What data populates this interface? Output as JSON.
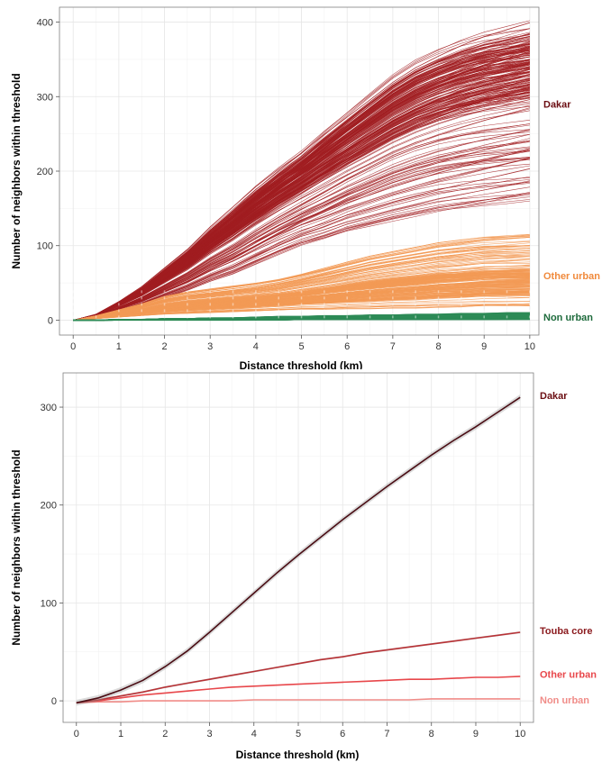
{
  "chart_data": [
    {
      "type": "line",
      "panel": "top",
      "xlabel": "Distance threshold (km)",
      "ylabel": "Number of neighbors within threshold",
      "xlim": [
        -0.3,
        10.2
      ],
      "ylim": [
        -20,
        420
      ],
      "x_ticks": [
        0,
        1,
        2,
        3,
        4,
        5,
        6,
        7,
        8,
        9,
        10
      ],
      "y_ticks": [
        0,
        100,
        200,
        300,
        400
      ],
      "grid": true,
      "legend_placement": "right-inline",
      "x": [
        0,
        0.5,
        1,
        1.5,
        2,
        2.5,
        3,
        3.5,
        4,
        4.5,
        5,
        5.5,
        6,
        6.5,
        7,
        7.5,
        8,
        8.5,
        9,
        9.5,
        10
      ],
      "series": [
        {
          "name": "Dakar",
          "color": "#a11d21",
          "label_color": "#6b0d12",
          "label_at_y": 290,
          "envelope_lower": [
            0,
            4,
            12,
            20,
            30,
            40,
            52,
            62,
            75,
            88,
            100,
            108,
            118,
            125,
            132,
            138,
            144,
            148,
            152,
            156,
            160
          ],
          "envelope_upper": [
            0,
            8,
            25,
            45,
            70,
            95,
            125,
            152,
            180,
            205,
            228,
            255,
            280,
            305,
            330,
            350,
            365,
            378,
            388,
            395,
            402
          ],
          "density_peak_y": 340
        },
        {
          "name": "Other urban",
          "color": "#f39a55",
          "label_color": "#f08a3c",
          "label_at_y": 60,
          "envelope_lower": [
            0,
            2,
            4,
            6,
            8,
            9,
            10,
            11,
            12,
            13,
            14,
            14,
            15,
            15,
            16,
            16,
            17,
            17,
            18,
            18,
            18
          ],
          "envelope_upper": [
            0,
            6,
            14,
            22,
            32,
            38,
            42,
            46,
            50,
            55,
            62,
            70,
            78,
            86,
            92,
            98,
            104,
            108,
            112,
            114,
            116
          ],
          "density_peak_y": 50
        },
        {
          "name": "Non urban",
          "color": "#2e8b57",
          "label_color": "#1e6b3c",
          "label_at_y": 4,
          "envelope_lower": [
            0,
            0,
            0,
            0,
            0,
            0,
            0,
            0,
            0,
            0,
            1,
            1,
            1,
            1,
            1,
            1,
            1,
            1,
            1,
            1,
            1
          ],
          "envelope_upper": [
            0,
            0,
            1,
            1,
            2,
            2,
            3,
            3,
            4,
            5,
            5,
            6,
            6,
            7,
            7,
            8,
            8,
            9,
            9,
            10,
            10
          ],
          "density_peak_y": 5
        }
      ]
    },
    {
      "type": "line",
      "panel": "bottom",
      "xlabel": "Distance threshold (km)",
      "ylabel": "Number of neighbors within threshold",
      "xlim": [
        -0.3,
        10.3
      ],
      "ylim": [
        -22,
        335
      ],
      "x_ticks": [
        0,
        1,
        2,
        3,
        4,
        5,
        6,
        7,
        8,
        9,
        10
      ],
      "y_ticks": [
        0,
        100,
        200,
        300
      ],
      "grid": true,
      "legend_placement": "right-inline",
      "x": [
        0,
        0.5,
        1,
        1.5,
        2,
        2.5,
        3,
        3.5,
        4,
        4.5,
        5,
        5.5,
        6,
        6.5,
        7,
        7.5,
        8,
        8.5,
        9,
        9.5,
        10
      ],
      "series": [
        {
          "name": "Dakar",
          "color": "#4a0d14",
          "label_color": "#6b0d12",
          "label_at_y": 312,
          "values": [
            -2,
            3,
            11,
            21,
            35,
            51,
            70,
            90,
            110,
            130,
            149,
            167,
            185,
            202,
            219,
            235,
            251,
            266,
            280,
            295,
            310
          ],
          "ci_halfwidth": 3
        },
        {
          "name": "Touba core",
          "color": "#b83236",
          "label_color": "#8b1a1e",
          "label_at_y": 72,
          "values": [
            -2,
            1,
            5,
            9,
            14,
            18,
            22,
            26,
            30,
            34,
            38,
            42,
            45,
            49,
            52,
            55,
            58,
            61,
            64,
            67,
            70
          ],
          "ci_halfwidth": 1
        },
        {
          "name": "Other urban",
          "color": "#e8474b",
          "label_color": "#e8474b",
          "label_at_y": 27,
          "values": [
            -2,
            0,
            3,
            6,
            8,
            10,
            12,
            14,
            15,
            16,
            17,
            18,
            19,
            20,
            21,
            22,
            22,
            23,
            24,
            24,
            25
          ],
          "ci_halfwidth": 0.5
        },
        {
          "name": "Non urban",
          "color": "#f08c88",
          "label_color": "#f08c88",
          "label_at_y": 1,
          "values": [
            -2,
            -1,
            -1,
            0,
            0,
            0,
            0,
            0,
            1,
            1,
            1,
            1,
            1,
            1,
            1,
            1,
            2,
            2,
            2,
            2,
            2
          ],
          "ci_halfwidth": 0.3
        }
      ]
    }
  ]
}
